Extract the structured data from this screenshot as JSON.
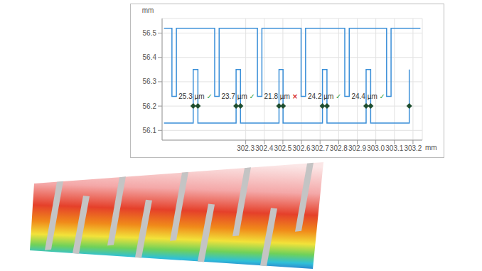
{
  "chart_data": {
    "type": "line",
    "x_label": "mm",
    "y_label": "mm",
    "color": "#3a8fd8",
    "marker": "none",
    "grid": true,
    "xlim": [
      301.85,
      303.25
    ],
    "xticks": [
      302.3,
      302.4,
      302.5,
      302.6,
      302.7,
      302.8,
      302.9,
      {
        "value": 303,
        "label": "303.0"
      },
      303.1,
      303.2
    ],
    "ylim": [
      56.06,
      56.56
    ],
    "yticks": [
      56.1,
      56.2,
      56.3,
      56.4,
      56.5
    ],
    "x": [
      301.86,
      301.903,
      301.903,
      301.927,
      301.927,
      302.133,
      302.133,
      302.157,
      302.157,
      302.363,
      302.363,
      302.387,
      302.387,
      302.598,
      302.598,
      302.622,
      302.622,
      302.833,
      302.833,
      302.857,
      302.857,
      303.058,
      303.058,
      303.082,
      303.082,
      303.24,
      303.24,
      301.86,
      302.0174,
      302.0174,
      302.0427,
      302.0427,
      302.2482,
      302.2482,
      302.2719,
      302.2719,
      302.4791,
      302.4791,
      302.5009,
      302.5009,
      302.7129,
      302.7129,
      302.7371,
      302.7371,
      302.9478,
      302.9478,
      302.9722,
      302.9722,
      303.18,
      303.18
    ],
    "values": [
      56.52,
      56.52,
      56.24,
      56.24,
      56.52,
      56.52,
      56.24,
      56.24,
      56.52,
      56.52,
      56.24,
      56.24,
      56.52,
      56.52,
      56.24,
      56.24,
      56.52,
      56.52,
      56.24,
      56.24,
      56.52,
      56.52,
      56.24,
      56.24,
      56.52,
      56.52,
      null,
      56.13,
      56.13,
      56.35,
      56.35,
      56.13,
      56.13,
      56.35,
      56.35,
      56.13,
      56.13,
      56.35,
      56.35,
      56.13,
      56.13,
      56.35,
      56.35,
      56.13,
      56.13,
      56.35,
      56.35,
      56.13,
      56.13,
      56.35
    ],
    "measurements": [
      {
        "x1": 302.0174,
        "x2": 302.0427,
        "y": 56.2,
        "value": 25.3,
        "label": "25.3 µm",
        "result": "✓"
      },
      {
        "x1": 302.2482,
        "x2": 302.2719,
        "y": 56.2,
        "value": 23.7,
        "label": "23.7 µm",
        "result": "✓"
      },
      {
        "x1": 302.4791,
        "x2": 302.5009,
        "y": 56.2,
        "value": 21.8,
        "label": "21.8 µm",
        "result": "×"
      },
      {
        "x1": 302.7129,
        "x2": 302.7371,
        "y": 56.2,
        "value": 24.2,
        "label": "24.2 µm",
        "result": "✓"
      },
      {
        "x1": 302.9478,
        "x2": 302.9722,
        "y": 56.2,
        "value": 24.4,
        "label": "24.4 µm",
        "result": "✓"
      }
    ],
    "marker_points": [
      {
        "x": 303.18,
        "y": 56.2
      }
    ]
  }
}
